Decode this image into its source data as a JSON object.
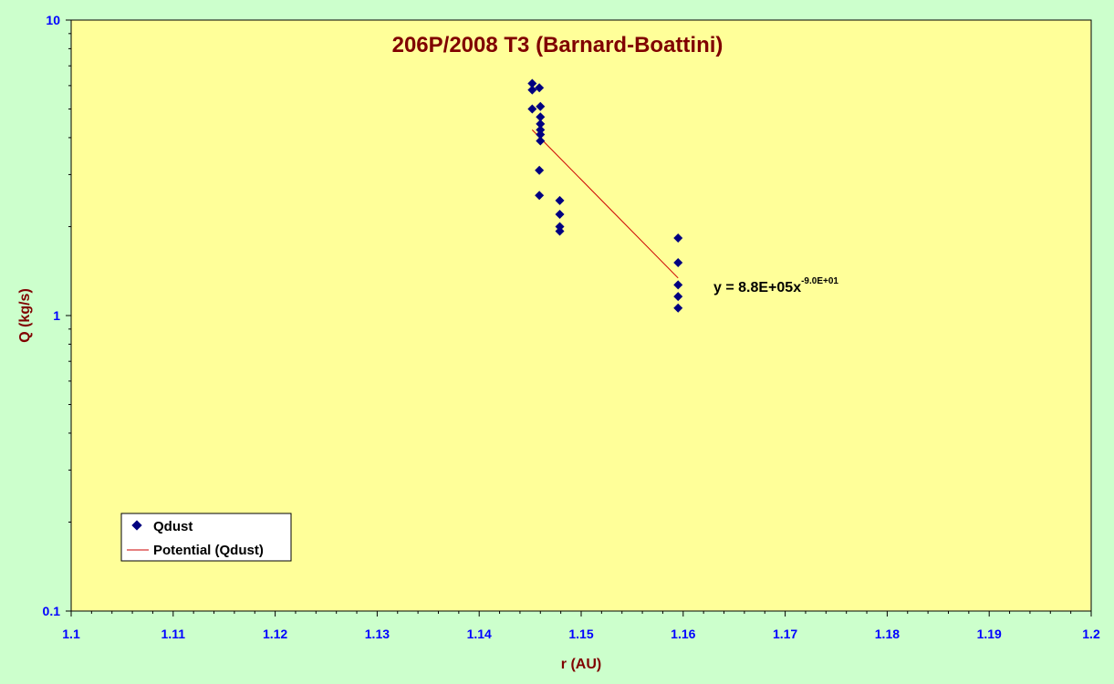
{
  "colors": {
    "background": "#ccffcc",
    "plot_area": "#ffff99",
    "title": "#800000",
    "tick_labels": "#0000ff",
    "marker": "#000080",
    "trendline": "#cc0000"
  },
  "chart_data": {
    "type": "scatter",
    "title": "206P/2008 T3 (Barnard-Boattini)",
    "xlabel": "r (AU)",
    "ylabel": "Q (kg/s)",
    "xlim": [
      1.1,
      1.2
    ],
    "ylim": [
      0.1,
      10
    ],
    "yscale": "log",
    "x_ticks": [
      "1.1",
      "1.11",
      "1.12",
      "1.13",
      "1.14",
      "1.15",
      "1.16",
      "1.17",
      "1.18",
      "1.19",
      "1.2"
    ],
    "y_ticks": [
      "0.1",
      "1",
      "10"
    ],
    "grid": false,
    "legend_position": "bottom-left",
    "series": [
      {
        "name": "Qdust",
        "marker": "diamond",
        "points": [
          {
            "x": 1.1452,
            "y": 6.1
          },
          {
            "x": 1.1452,
            "y": 5.8
          },
          {
            "x": 1.1452,
            "y": 5.0
          },
          {
            "x": 1.1459,
            "y": 5.9
          },
          {
            "x": 1.146,
            "y": 5.1
          },
          {
            "x": 1.146,
            "y": 4.7
          },
          {
            "x": 1.146,
            "y": 4.45
          },
          {
            "x": 1.146,
            "y": 4.25
          },
          {
            "x": 1.146,
            "y": 4.1
          },
          {
            "x": 1.146,
            "y": 3.9
          },
          {
            "x": 1.1459,
            "y": 3.1
          },
          {
            "x": 1.1459,
            "y": 2.55
          },
          {
            "x": 1.1479,
            "y": 2.45
          },
          {
            "x": 1.1479,
            "y": 2.2
          },
          {
            "x": 1.1479,
            "y": 2.0
          },
          {
            "x": 1.1479,
            "y": 1.93
          },
          {
            "x": 1.1595,
            "y": 1.83
          },
          {
            "x": 1.1595,
            "y": 1.51
          },
          {
            "x": 1.1595,
            "y": 1.27
          },
          {
            "x": 1.1595,
            "y": 1.16
          },
          {
            "x": 1.1595,
            "y": 1.06
          }
        ]
      },
      {
        "name": "Potential (Qdust)",
        "type": "trendline",
        "points": [
          {
            "x": 1.1452,
            "y": 4.25
          },
          {
            "x": 1.1595,
            "y": 1.34
          }
        ]
      }
    ],
    "annotations": [
      {
        "base": "y = 8.8E+05x",
        "superscript": "-9.0E+01",
        "position": "right of trendline end"
      }
    ]
  }
}
